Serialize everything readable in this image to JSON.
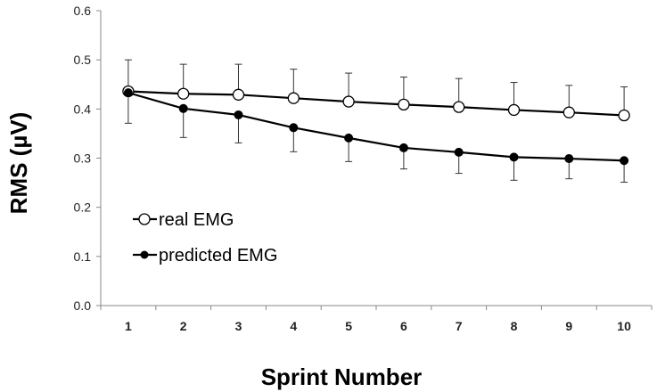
{
  "chart_data": {
    "type": "line",
    "title": "",
    "xlabel": "Sprint Number",
    "ylabel": "RMS (µV)",
    "x": [
      1,
      2,
      3,
      4,
      5,
      6,
      7,
      8,
      9,
      10
    ],
    "x_tick_labels": [
      "1",
      "2",
      "3",
      "4",
      "5",
      "6",
      "7",
      "8",
      "9",
      "10"
    ],
    "ylim": [
      0,
      0.6
    ],
    "y_ticks": [
      0,
      0.1,
      0.2,
      0.3,
      0.4,
      0.5,
      0.6
    ],
    "y_tick_labels": [
      "0.0",
      "0.1",
      "0.2",
      "0.3",
      "0.4",
      "0.5",
      "0.6"
    ],
    "grid": false,
    "legend_position": "middle-left",
    "series": [
      {
        "name": "real EMG",
        "marker": "open-circle",
        "values": [
          0.436,
          0.431,
          0.429,
          0.422,
          0.415,
          0.409,
          0.404,
          0.398,
          0.393,
          0.387
        ],
        "error": [
          0.064,
          0.06,
          0.062,
          0.059,
          0.058,
          0.056,
          0.058,
          0.056,
          0.055,
          0.058
        ]
      },
      {
        "name": "predicted EMG",
        "marker": "filled-circle",
        "values": [
          0.433,
          0.401,
          0.388,
          0.362,
          0.341,
          0.321,
          0.312,
          0.302,
          0.299,
          0.295
        ],
        "error": [
          0.062,
          0.059,
          0.057,
          0.049,
          0.048,
          0.043,
          0.043,
          0.047,
          0.041,
          0.044
        ]
      }
    ]
  }
}
